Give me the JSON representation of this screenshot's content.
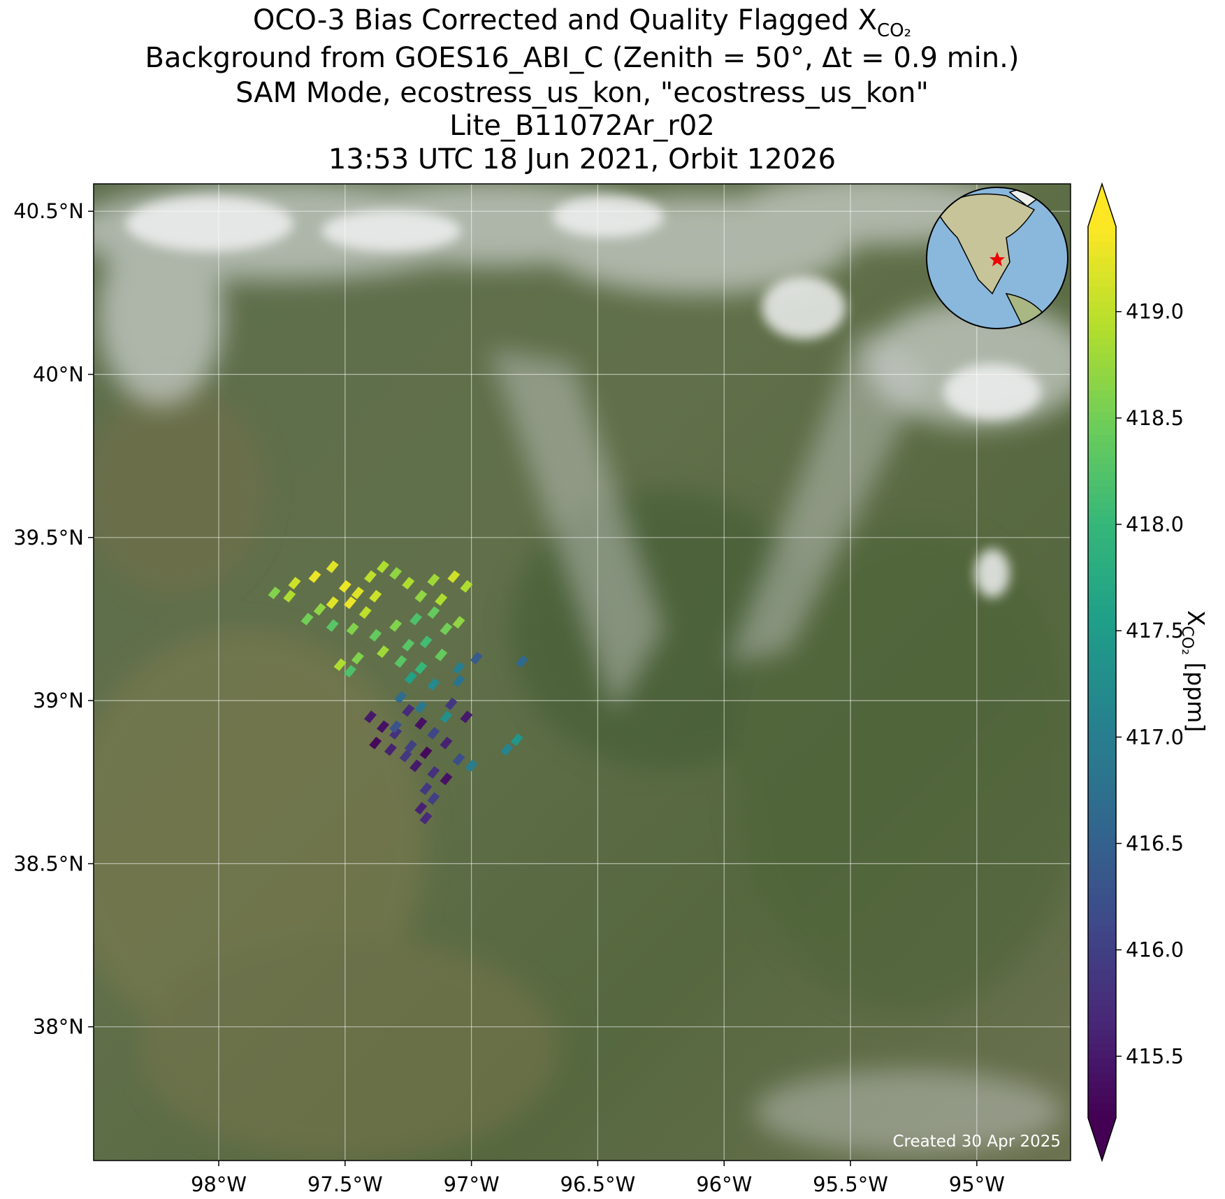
{
  "chart_data": {
    "type": "scatter",
    "title_lines": [
      "OCO-3 Bias Corrected and Quality Flagged X",
      "Background from GOES16_ABI_C (Zenith = 50$^\\circ$, Δt =  0.9 min.)",
      "SAM Mode, ecostress_us_kon, \"ecostress_us_kon\"",
      "Lite_B11072Ar_r02",
      "13:53 UTC 18 Jun 2021, Orbit 12026"
    ],
    "title_subscript": "CO₂",
    "colorbar_label": {
      "main": "X",
      "sub": "CO₂",
      "unit": " [ppm]"
    },
    "footnote": "Created 30 Apr 2025",
    "colormap": "viridis",
    "xlim": [
      -98.495,
      -94.629
    ],
    "ylim": [
      37.59,
      40.584
    ],
    "clim": [
      415.21,
      419.4
    ],
    "xticks": [
      {
        "value": -98,
        "label": "98°W"
      },
      {
        "value": -97.5,
        "label": "97.5°W"
      },
      {
        "value": -97,
        "label": "97°W"
      },
      {
        "value": -96.5,
        "label": "96.5°W"
      },
      {
        "value": -96,
        "label": "96°W"
      },
      {
        "value": -95.5,
        "label": "95.5°W"
      },
      {
        "value": -95,
        "label": "95°W"
      }
    ],
    "yticks": [
      {
        "value": 40.5,
        "label": "40.5°N"
      },
      {
        "value": 40,
        "label": "40°N"
      },
      {
        "value": 39.5,
        "label": "39.5°N"
      },
      {
        "value": 39,
        "label": "39°N"
      },
      {
        "value": 38.5,
        "label": "38.5°N"
      },
      {
        "value": 38,
        "label": "38°N"
      }
    ],
    "cticks": [
      {
        "value": 419,
        "label": "419.0"
      },
      418.5,
      {
        "value": 418,
        "label": "418.0"
      },
      417.5,
      {
        "value": 417,
        "label": "417.0"
      },
      416.5,
      {
        "value": 416,
        "label": "416.0"
      },
      415.5
    ],
    "grid": true,
    "x": [
      -97.55,
      -97.62,
      -97.7,
      -97.78,
      -97.72,
      -97.5,
      -97.45,
      -97.4,
      -97.35,
      -97.3,
      -97.25,
      -97.15,
      -97.07,
      -97.02,
      -97.38,
      -97.55,
      -97.48,
      -97.6,
      -97.42,
      -97.2,
      -97.12,
      -97.65,
      -97.55,
      -97.47,
      -97.38,
      -97.3,
      -97.22,
      -97.15,
      -97.1,
      -97.05,
      -97.18,
      -97.25,
      -97.35,
      -97.45,
      -97.52,
      -97.48,
      -97.28,
      -97.2,
      -97.12,
      -97.24,
      -97.15,
      -97.05,
      -96.98,
      -97.05,
      -96.8,
      -97.28,
      -97.2,
      -97.1,
      -96.82,
      -96.86,
      -97.0,
      -97.4,
      -97.35,
      -97.3,
      -97.38,
      -97.32,
      -97.26,
      -97.25,
      -97.2,
      -97.15,
      -97.1,
      -97.18,
      -97.22,
      -97.15,
      -97.1,
      -97.18,
      -97.15,
      -97.2,
      -97.18,
      -97.08,
      -97.02,
      -97.05,
      -97.3,
      -97.24
    ],
    "y": [
      39.41,
      39.38,
      39.36,
      39.33,
      39.32,
      39.35,
      39.33,
      39.38,
      39.41,
      39.39,
      39.36,
      39.37,
      39.38,
      39.35,
      39.32,
      39.3,
      39.3,
      39.28,
      39.27,
      39.32,
      39.31,
      39.25,
      39.23,
      39.22,
      39.2,
      39.23,
      39.25,
      39.27,
      39.22,
      39.24,
      39.18,
      39.17,
      39.15,
      39.13,
      39.11,
      39.09,
      39.12,
      39.1,
      39.14,
      39.07,
      39.05,
      39.1,
      39.13,
      39.06,
      39.12,
      39.01,
      38.98,
      38.95,
      38.88,
      38.85,
      38.8,
      38.95,
      38.92,
      38.9,
      38.87,
      38.85,
      38.83,
      38.97,
      38.93,
      38.9,
      38.87,
      38.84,
      38.8,
      38.78,
      38.76,
      38.73,
      38.7,
      38.67,
      38.64,
      38.99,
      38.95,
      38.82,
      38.92,
      38.86
    ],
    "values": [
      419.2,
      419.3,
      419.1,
      418.6,
      418.9,
      419.3,
      419.2,
      419.0,
      418.9,
      418.7,
      418.9,
      418.8,
      419.1,
      418.9,
      419.1,
      419.2,
      419.3,
      418.7,
      419.0,
      418.7,
      418.9,
      418.5,
      418.3,
      418.6,
      418.4,
      418.6,
      418.2,
      418.4,
      418.5,
      418.7,
      418.1,
      418.3,
      418.8,
      418.6,
      418.9,
      418.2,
      418.3,
      418.0,
      418.4,
      417.6,
      417.2,
      417.0,
      416.4,
      416.8,
      416.6,
      416.7,
      416.9,
      417.3,
      417.4,
      417.1,
      417.0,
      415.5,
      415.4,
      415.8,
      415.3,
      415.6,
      415.9,
      415.7,
      415.4,
      416.1,
      415.6,
      415.3,
      415.5,
      415.8,
      415.4,
      415.9,
      416.0,
      415.6,
      415.7,
      415.9,
      415.5,
      416.2,
      416.3,
      416.0
    ]
  }
}
